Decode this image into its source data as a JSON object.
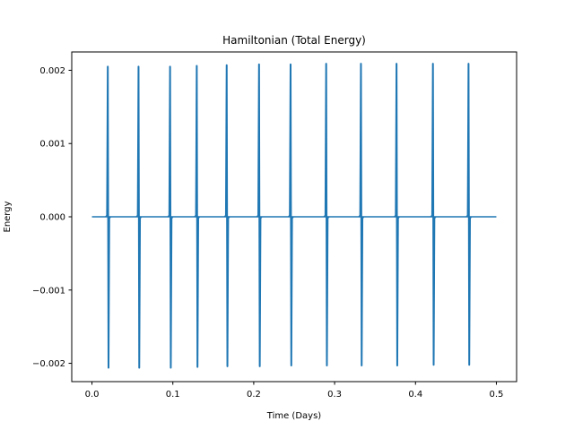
{
  "chart_data": {
    "type": "line",
    "title": "Hamiltonian (Total Energy)",
    "xlabel": "Time (Days)",
    "ylabel": "Energy",
    "xlim": [
      -0.025,
      0.525
    ],
    "ylim": [
      -0.00225,
      0.00225
    ],
    "x_ticks": [
      0.0,
      0.1,
      0.2,
      0.3,
      0.4,
      0.5
    ],
    "x_tick_labels": [
      "0.0",
      "0.1",
      "0.2",
      "0.3",
      "0.4",
      "0.5"
    ],
    "y_ticks": [
      0.002,
      0.001,
      0.0,
      -0.001,
      -0.002
    ],
    "y_tick_labels": [
      "0.002",
      "0.001",
      "0.000",
      "−0.001",
      "−0.002"
    ],
    "grid": false,
    "line_color": "#1f77b4",
    "series": [
      {
        "baseline": 0.0,
        "x_range": [
          0.0,
          0.5
        ],
        "spikes": [
          {
            "x": 0.02,
            "max": 0.00205,
            "min": -0.00206
          },
          {
            "x": 0.058,
            "max": 0.00205,
            "min": -0.00206
          },
          {
            "x": 0.097,
            "max": 0.00205,
            "min": -0.00206
          },
          {
            "x": 0.13,
            "max": 0.00206,
            "min": -0.00205
          },
          {
            "x": 0.167,
            "max": 0.00207,
            "min": -0.00204
          },
          {
            "x": 0.207,
            "max": 0.00208,
            "min": -0.00204
          },
          {
            "x": 0.246,
            "max": 0.00208,
            "min": -0.00203
          },
          {
            "x": 0.29,
            "max": 0.00209,
            "min": -0.00203
          },
          {
            "x": 0.333,
            "max": 0.00209,
            "min": -0.00203
          },
          {
            "x": 0.377,
            "max": 0.00209,
            "min": -0.00203
          },
          {
            "x": 0.422,
            "max": 0.00209,
            "min": -0.00202
          },
          {
            "x": 0.466,
            "max": 0.00209,
            "min": -0.00202
          }
        ]
      }
    ]
  }
}
